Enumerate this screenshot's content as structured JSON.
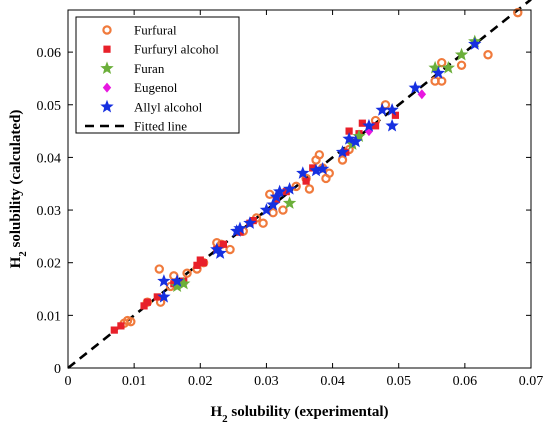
{
  "chart_data": {
    "type": "scatter",
    "xlabel": {
      "main": "H",
      "sub": "2",
      "rest": " solubility (experimental)"
    },
    "ylabel": {
      "main": "H",
      "sub": "2",
      "rest": " solubility (calculated)"
    },
    "xlim": [
      0,
      0.07
    ],
    "ylim": [
      0,
      0.068
    ],
    "xticks": [
      0,
      0.01,
      0.02,
      0.03,
      0.04,
      0.05,
      0.06,
      0.07
    ],
    "xtick_labels": [
      "0",
      "0.01",
      "0.02",
      "0.03",
      "0.04",
      "0.05",
      "0.06",
      "0.07"
    ],
    "yticks": [
      0,
      0.01,
      0.02,
      0.03,
      0.04,
      0.05,
      0.06
    ],
    "ytick_labels": [
      "0",
      "0.01",
      "0.02",
      "0.03",
      "0.04",
      "0.05",
      "0.06"
    ],
    "grid": false,
    "legend_position": "top-left",
    "series": [
      {
        "name": "Furfural",
        "marker": "circle-open",
        "color": "#F07A3C",
        "points": [
          [
            0.0085,
            0.0085
          ],
          [
            0.009,
            0.009
          ],
          [
            0.0095,
            0.0088
          ],
          [
            0.012,
            0.0125
          ],
          [
            0.0138,
            0.0188
          ],
          [
            0.014,
            0.0125
          ],
          [
            0.0155,
            0.0155
          ],
          [
            0.016,
            0.0175
          ],
          [
            0.018,
            0.018
          ],
          [
            0.0195,
            0.0188
          ],
          [
            0.0205,
            0.02
          ],
          [
            0.0225,
            0.0238
          ],
          [
            0.0232,
            0.0235
          ],
          [
            0.0245,
            0.0225
          ],
          [
            0.0265,
            0.026
          ],
          [
            0.0285,
            0.0285
          ],
          [
            0.0295,
            0.0275
          ],
          [
            0.0305,
            0.033
          ],
          [
            0.031,
            0.0295
          ],
          [
            0.0325,
            0.03
          ],
          [
            0.0345,
            0.0345
          ],
          [
            0.036,
            0.036
          ],
          [
            0.0365,
            0.034
          ],
          [
            0.0375,
            0.0395
          ],
          [
            0.038,
            0.0405
          ],
          [
            0.0385,
            0.038
          ],
          [
            0.039,
            0.036
          ],
          [
            0.0395,
            0.037
          ],
          [
            0.0415,
            0.0395
          ],
          [
            0.0425,
            0.0415
          ],
          [
            0.0465,
            0.047
          ],
          [
            0.048,
            0.05
          ],
          [
            0.0555,
            0.0545
          ],
          [
            0.0565,
            0.058
          ],
          [
            0.0565,
            0.0545
          ],
          [
            0.0595,
            0.0575
          ],
          [
            0.0635,
            0.0595
          ],
          [
            0.068,
            0.0675
          ]
        ]
      },
      {
        "name": "Furfuryl alcohol",
        "marker": "square",
        "color": "#E8202A",
        "points": [
          [
            0.007,
            0.0072
          ],
          [
            0.008,
            0.008
          ],
          [
            0.0115,
            0.0118
          ],
          [
            0.012,
            0.0125
          ],
          [
            0.0135,
            0.0135
          ],
          [
            0.016,
            0.016
          ],
          [
            0.0175,
            0.0165
          ],
          [
            0.0195,
            0.0195
          ],
          [
            0.02,
            0.0205
          ],
          [
            0.0205,
            0.02
          ],
          [
            0.0225,
            0.0225
          ],
          [
            0.0235,
            0.0235
          ],
          [
            0.026,
            0.0258
          ],
          [
            0.0275,
            0.0275
          ],
          [
            0.028,
            0.028
          ],
          [
            0.0315,
            0.032
          ],
          [
            0.033,
            0.0335
          ],
          [
            0.036,
            0.0355
          ],
          [
            0.037,
            0.038
          ],
          [
            0.042,
            0.041
          ],
          [
            0.0425,
            0.045
          ],
          [
            0.044,
            0.0445
          ],
          [
            0.0445,
            0.0465
          ],
          [
            0.0465,
            0.046
          ],
          [
            0.0495,
            0.048
          ]
        ]
      },
      {
        "name": "Furan",
        "marker": "star",
        "color": "#6BAF3A",
        "points": [
          [
            0.0165,
            0.0155
          ],
          [
            0.0175,
            0.016
          ],
          [
            0.0335,
            0.0313
          ],
          [
            0.043,
            0.0425
          ],
          [
            0.044,
            0.044
          ],
          [
            0.0555,
            0.057
          ],
          [
            0.0575,
            0.057
          ],
          [
            0.0595,
            0.0595
          ],
          [
            0.0615,
            0.062
          ]
        ]
      },
      {
        "name": "Eugenol",
        "marker": "diamond",
        "color": "#E817E0",
        "points": [
          [
            0.0455,
            0.045
          ],
          [
            0.0535,
            0.052
          ]
        ]
      },
      {
        "name": "Allyl alcohol",
        "marker": "star",
        "color": "#1630E0",
        "points": [
          [
            0.0145,
            0.0135
          ],
          [
            0.0145,
            0.0165
          ],
          [
            0.0165,
            0.0165
          ],
          [
            0.0225,
            0.0225
          ],
          [
            0.023,
            0.0218
          ],
          [
            0.0255,
            0.026
          ],
          [
            0.026,
            0.0265
          ],
          [
            0.0275,
            0.0275
          ],
          [
            0.03,
            0.03
          ],
          [
            0.031,
            0.031
          ],
          [
            0.0315,
            0.0325
          ],
          [
            0.032,
            0.0335
          ],
          [
            0.0335,
            0.034
          ],
          [
            0.0355,
            0.037
          ],
          [
            0.0375,
            0.0375
          ],
          [
            0.0385,
            0.0378
          ],
          [
            0.0415,
            0.041
          ],
          [
            0.0425,
            0.0435
          ],
          [
            0.0435,
            0.043
          ],
          [
            0.0455,
            0.046
          ],
          [
            0.0475,
            0.049
          ],
          [
            0.049,
            0.046
          ],
          [
            0.049,
            0.049
          ],
          [
            0.0525,
            0.0532
          ],
          [
            0.056,
            0.056
          ],
          [
            0.0615,
            0.0615
          ]
        ]
      },
      {
        "name": "Fitted line",
        "marker": "dashed-line",
        "color": "#000000",
        "points": [
          [
            0,
            0
          ],
          [
            0.07,
            0.07
          ]
        ]
      }
    ]
  }
}
